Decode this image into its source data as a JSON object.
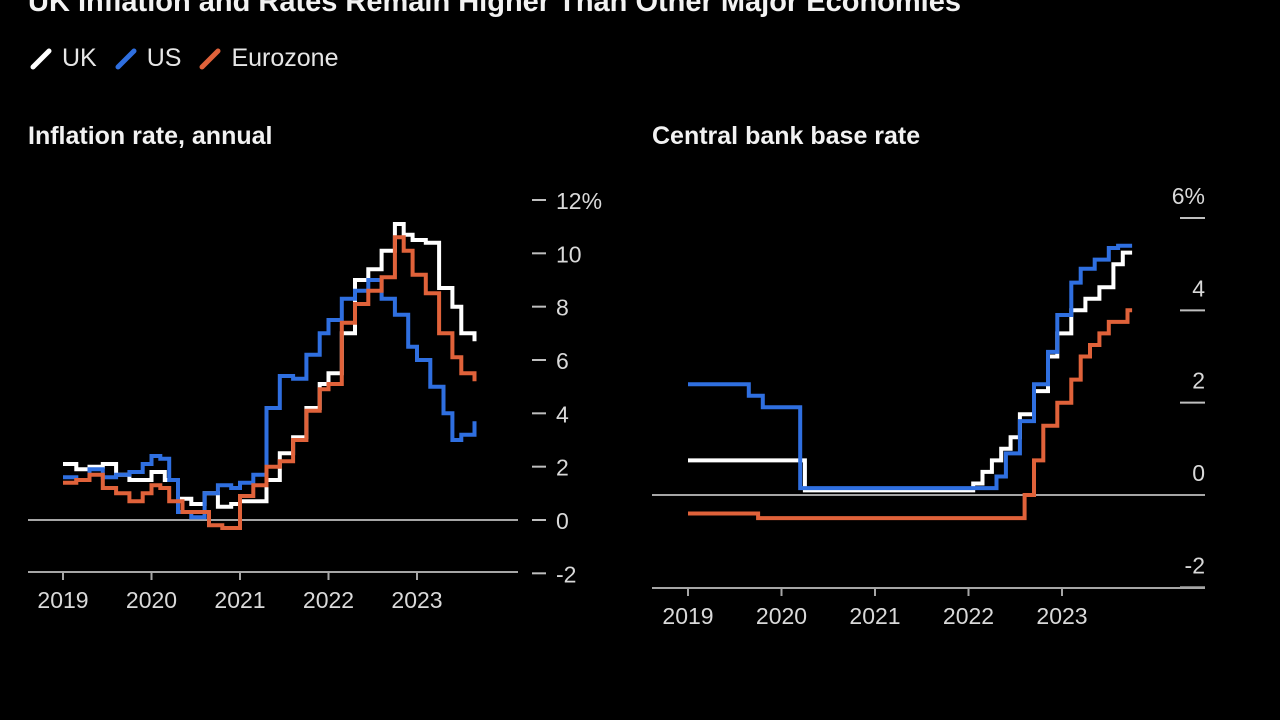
{
  "title": "UK Inflation and Rates Remain Higher Than Other Major Economies",
  "legend": [
    {
      "name": "UK",
      "color": "#ffffff"
    },
    {
      "name": "US",
      "color": "#2f6fe0"
    },
    {
      "name": "Eurozone",
      "color": "#e0623a"
    }
  ],
  "chart_data": [
    {
      "type": "line",
      "title": "Inflation rate, annual",
      "x_ticks": [
        "2019",
        "2020",
        "2021",
        "2022",
        "2023"
      ],
      "x_range": [
        2018.6,
        2024.1
      ],
      "ylim": [
        -2,
        12
      ],
      "y_ticks": [
        -2,
        0,
        2,
        4,
        6,
        8,
        10,
        12
      ],
      "y_tick_labels": [
        "-2",
        "0",
        "2",
        "4",
        "6",
        "8",
        "10",
        "12%"
      ],
      "zero_line": true,
      "series": [
        {
          "name": "UK",
          "color": "#ffffff",
          "x": [
            2019.0,
            2019.15,
            2019.3,
            2019.45,
            2019.6,
            2019.75,
            2019.9,
            2020.0,
            2020.15,
            2020.3,
            2020.45,
            2020.6,
            2020.75,
            2020.9,
            2021.0,
            2021.15,
            2021.3,
            2021.45,
            2021.6,
            2021.75,
            2021.9,
            2022.0,
            2022.15,
            2022.3,
            2022.45,
            2022.6,
            2022.75,
            2022.85,
            2022.95,
            2023.1,
            2023.25,
            2023.4,
            2023.5,
            2023.65
          ],
          "y": [
            2.1,
            1.9,
            2.0,
            2.1,
            1.7,
            1.5,
            1.5,
            1.8,
            1.5,
            0.8,
            0.6,
            1.0,
            0.5,
            0.6,
            0.7,
            0.7,
            1.5,
            2.5,
            3.1,
            4.2,
            5.1,
            5.5,
            7.0,
            9.0,
            9.4,
            10.1,
            11.1,
            10.7,
            10.5,
            10.4,
            8.7,
            8.0,
            7.0,
            6.7
          ]
        },
        {
          "name": "US",
          "color": "#2f6fe0",
          "x": [
            2019.0,
            2019.15,
            2019.3,
            2019.45,
            2019.6,
            2019.75,
            2019.9,
            2020.0,
            2020.1,
            2020.2,
            2020.3,
            2020.45,
            2020.6,
            2020.75,
            2020.9,
            2021.0,
            2021.15,
            2021.3,
            2021.45,
            2021.6,
            2021.75,
            2021.9,
            2022.0,
            2022.15,
            2022.3,
            2022.45,
            2022.6,
            2022.75,
            2022.9,
            2023.0,
            2023.15,
            2023.3,
            2023.4,
            2023.5,
            2023.65
          ],
          "y": [
            1.6,
            1.5,
            1.9,
            1.6,
            1.7,
            1.8,
            2.1,
            2.4,
            2.3,
            1.5,
            0.3,
            0.1,
            1.0,
            1.3,
            1.2,
            1.4,
            1.7,
            4.2,
            5.4,
            5.3,
            6.2,
            7.0,
            7.5,
            8.3,
            8.6,
            9.0,
            8.3,
            7.7,
            6.5,
            6.0,
            5.0,
            4.0,
            3.0,
            3.2,
            3.7
          ]
        },
        {
          "name": "Eurozone",
          "color": "#e0623a",
          "x": [
            2019.0,
            2019.15,
            2019.3,
            2019.45,
            2019.6,
            2019.75,
            2019.9,
            2020.0,
            2020.1,
            2020.2,
            2020.35,
            2020.5,
            2020.65,
            2020.8,
            2021.0,
            2021.15,
            2021.3,
            2021.45,
            2021.6,
            2021.75,
            2021.9,
            2022.0,
            2022.15,
            2022.3,
            2022.45,
            2022.6,
            2022.75,
            2022.85,
            2022.95,
            2023.1,
            2023.25,
            2023.4,
            2023.5,
            2023.65
          ],
          "y": [
            1.4,
            1.5,
            1.7,
            1.2,
            1.0,
            0.7,
            1.0,
            1.3,
            1.2,
            0.7,
            0.3,
            0.3,
            -0.2,
            -0.3,
            0.9,
            1.3,
            2.0,
            2.2,
            3.0,
            4.1,
            4.9,
            5.1,
            7.4,
            8.1,
            8.6,
            9.1,
            10.6,
            10.1,
            9.2,
            8.5,
            7.0,
            6.1,
            5.5,
            5.2
          ]
        }
      ]
    },
    {
      "type": "line",
      "title": "Central bank base rate",
      "x_ticks": [
        "2019",
        "2020",
        "2021",
        "2022",
        "2023"
      ],
      "x_range": [
        2018.63,
        2024.25
      ],
      "ylim": [
        -2,
        6
      ],
      "y_ticks": [
        -2,
        0,
        2,
        4,
        6
      ],
      "y_tick_labels": [
        "-2",
        "0",
        "2",
        "4",
        "6%"
      ],
      "zero_line": true,
      "series": [
        {
          "name": "UK",
          "color": "#ffffff",
          "x": [
            2019.0,
            2020.2,
            2020.25,
            2021.95,
            2022.05,
            2022.15,
            2022.25,
            2022.35,
            2022.45,
            2022.55,
            2022.7,
            2022.85,
            2022.95,
            2023.1,
            2023.25,
            2023.4,
            2023.55,
            2023.65,
            2023.75
          ],
          "y": [
            0.75,
            0.75,
            0.1,
            0.1,
            0.25,
            0.5,
            0.75,
            1.0,
            1.25,
            1.75,
            2.25,
            3.0,
            3.5,
            4.0,
            4.25,
            4.5,
            5.0,
            5.25,
            5.25
          ]
        },
        {
          "name": "US",
          "color": "#2f6fe0",
          "x": [
            2019.0,
            2019.55,
            2019.65,
            2019.8,
            2020.17,
            2020.2,
            2022.15,
            2022.3,
            2022.4,
            2022.55,
            2022.7,
            2022.85,
            2022.95,
            2023.1,
            2023.2,
            2023.35,
            2023.5,
            2023.6,
            2023.75
          ],
          "y": [
            2.4,
            2.4,
            2.15,
            1.9,
            1.9,
            0.15,
            0.15,
            0.4,
            0.9,
            1.6,
            2.4,
            3.1,
            3.9,
            4.6,
            4.9,
            5.1,
            5.35,
            5.4,
            5.4
          ]
        },
        {
          "name": "Eurozone",
          "color": "#e0623a",
          "x": [
            2019.0,
            2019.7,
            2019.75,
            2022.55,
            2022.6,
            2022.7,
            2022.8,
            2022.95,
            2023.1,
            2023.2,
            2023.3,
            2023.4,
            2023.5,
            2023.6,
            2023.7,
            2023.75
          ],
          "y": [
            -0.4,
            -0.4,
            -0.5,
            -0.5,
            0.0,
            0.75,
            1.5,
            2.0,
            2.5,
            3.0,
            3.25,
            3.5,
            3.75,
            3.75,
            4.0,
            4.0
          ]
        }
      ]
    }
  ]
}
